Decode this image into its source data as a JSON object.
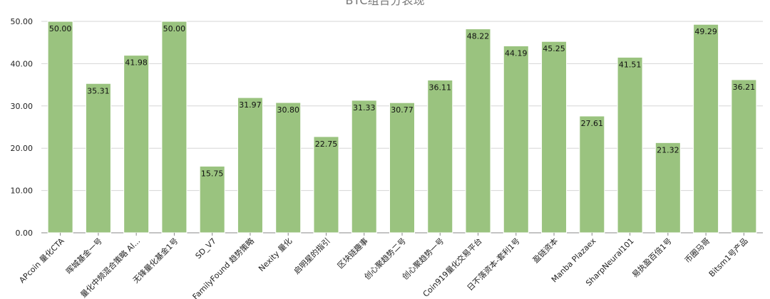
{
  "chart_data": {
    "type": "bar",
    "title": "BTC组合分表现",
    "categories": [
      "APcoin 量化CTA",
      "晖城基金一号",
      "量化中频混合策略 Al...",
      "无锋量化基金1号",
      "SD_V7",
      "FamilyFound 趋势策略",
      "Nexity 量化",
      "启明星的指引",
      "区块链趣事",
      "创心聚趋势二号",
      "创心聚趋势一号",
      "Coin919量化交易平台",
      "日不落资本-套利1号",
      "盈链资本",
      "Manba Plazaex",
      "SharpNeural101",
      "易执盈百倍1号",
      "币圈马哥",
      "Bitsm1号产品"
    ],
    "values": [
      50.0,
      35.31,
      41.98,
      50.0,
      15.75,
      31.97,
      30.8,
      22.75,
      31.33,
      30.77,
      36.11,
      48.22,
      44.19,
      45.25,
      27.61,
      41.51,
      21.32,
      49.29,
      36.21
    ],
    "value_labels": [
      "50.00",
      "35.31",
      "41.98",
      "50.00",
      "15.75",
      "31.97",
      "30.80",
      "22.75",
      "31.33",
      "30.77",
      "36.11",
      "48.22",
      "44.19",
      "45.25",
      "27.61",
      "41.51",
      "21.32",
      "49.29",
      "36.21"
    ],
    "ylim": [
      0,
      50
    ],
    "yticks": [
      0,
      10,
      20,
      30,
      40,
      50
    ],
    "ytick_labels": [
      "0.00",
      "10.00",
      "20.00",
      "30.00",
      "40.00",
      "50.00"
    ],
    "xlabel": "",
    "ylabel": "",
    "grid": true,
    "legend": "none",
    "bar_color": "#9ac37f",
    "bar_stroke_color": "#ffffff"
  }
}
